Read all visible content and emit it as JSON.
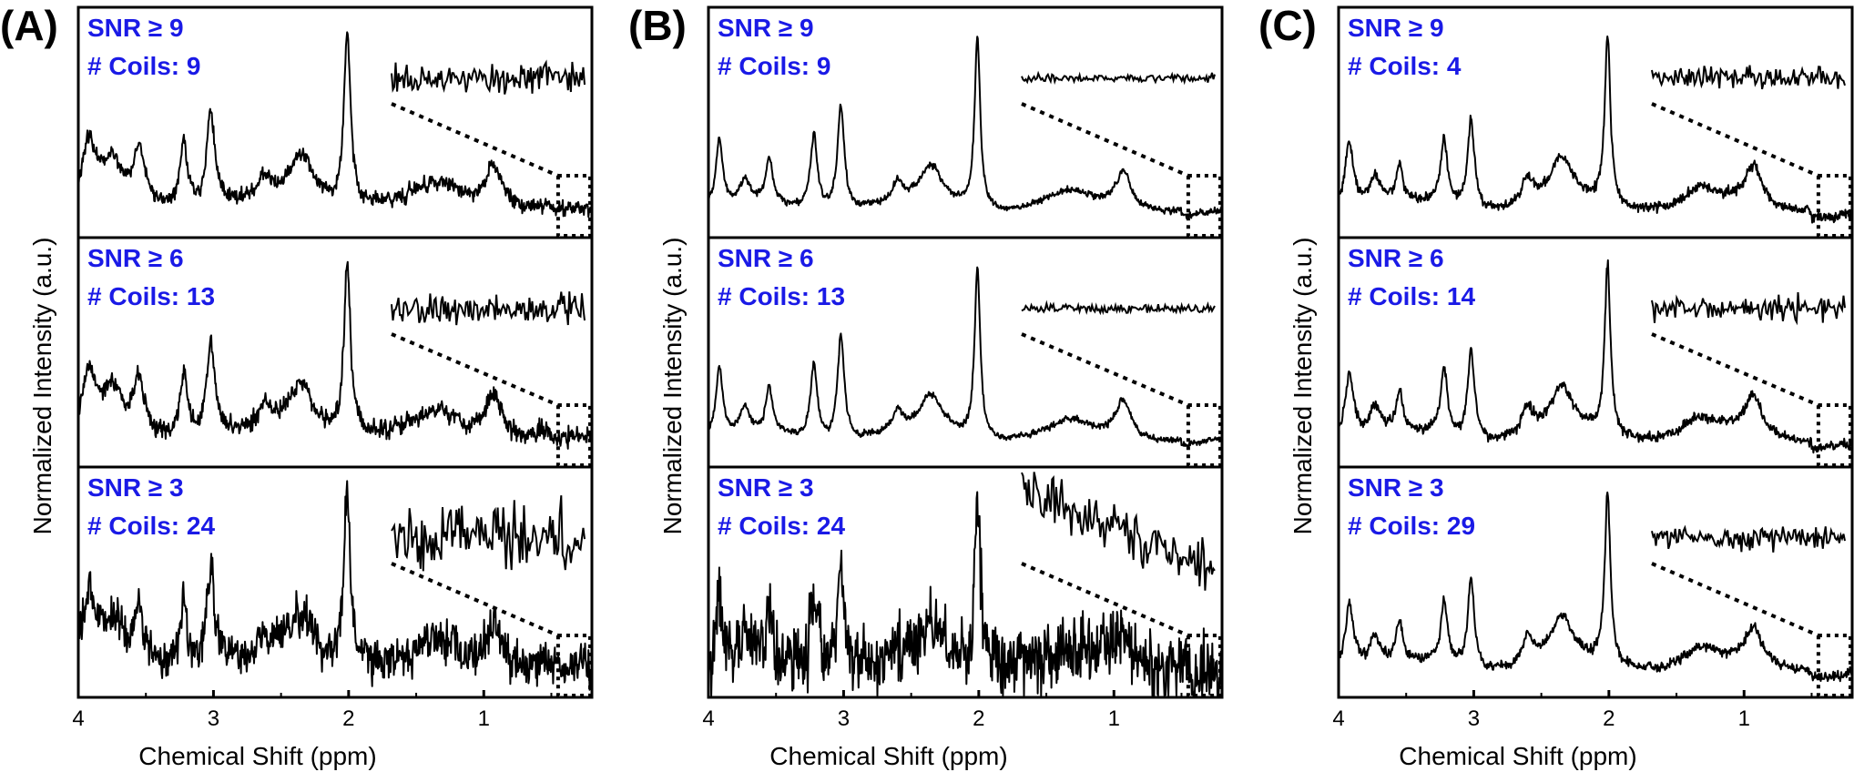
{
  "figure": {
    "annotation_color": "#1a1ae6",
    "line_color": "#000000"
  },
  "chart_data": [
    {
      "type": "line",
      "panel_label": "(A)",
      "xlabel": "Chemical Shift (ppm)",
      "ylabel": "Normalized Intensity (a.u.)",
      "xlim": [
        4.0,
        0.2
      ],
      "xticks": [
        4,
        3,
        2,
        1
      ],
      "tick_labels": [
        "4",
        "3",
        "2",
        "1"
      ],
      "inset_range_ppm": [
        0.45,
        0.2
      ],
      "series": [
        {
          "name": "SNR ≥ 9 / # Coils: 9",
          "snr_label": "SNR ≥ 9",
          "coils_label": "# Coils: 9",
          "noise": 0.045,
          "inset_noise": 0.3
        },
        {
          "name": "SNR ≥ 6 / # Coils: 13",
          "snr_label": "SNR ≥ 6",
          "coils_label": "# Coils: 13",
          "noise": 0.055,
          "inset_noise": 0.32
        },
        {
          "name": "SNR ≥ 3 / # Coils: 24",
          "snr_label": "SNR ≥ 3",
          "coils_label": "# Coils: 24",
          "noise": 0.12,
          "inset_noise": 0.65
        }
      ],
      "peaks_ppm": [
        {
          "ppm": 3.92,
          "height": 0.34,
          "width": 0.06
        },
        {
          "ppm": 3.75,
          "height": 0.25,
          "width": 0.08
        },
        {
          "ppm": 3.55,
          "height": 0.32,
          "width": 0.05
        },
        {
          "ppm": 3.22,
          "height": 0.38,
          "width": 0.035
        },
        {
          "ppm": 3.02,
          "height": 0.56,
          "width": 0.035
        },
        {
          "ppm": 2.62,
          "height": 0.12,
          "width": 0.05
        },
        {
          "ppm": 2.35,
          "height": 0.3,
          "width": 0.12
        },
        {
          "ppm": 2.01,
          "height": 1.0,
          "width": 0.03
        },
        {
          "ppm": 1.33,
          "height": 0.12,
          "width": 0.18
        },
        {
          "ppm": 0.93,
          "height": 0.26,
          "width": 0.08
        }
      ]
    },
    {
      "type": "line",
      "panel_label": "(B)",
      "xlabel": "Chemical Shift (ppm)",
      "ylabel": "Normalized Intensity (a.u.)",
      "xlim": [
        4.0,
        0.2
      ],
      "xticks": [
        4,
        3,
        2,
        1
      ],
      "tick_labels": [
        "4",
        "3",
        "2",
        "1"
      ],
      "inset_range_ppm": [
        0.45,
        0.2
      ],
      "series": [
        {
          "name": "SNR ≥ 9 / # Coils: 9",
          "snr_label": "SNR ≥ 9",
          "coils_label": "# Coils: 9",
          "noise": 0.02,
          "inset_noise": 0.08
        },
        {
          "name": "SNR ≥ 6 / # Coils: 13",
          "snr_label": "SNR ≥ 6",
          "coils_label": "# Coils: 13",
          "noise": 0.02,
          "inset_noise": 0.08
        },
        {
          "name": "SNR ≥ 3 / # Coils: 24",
          "snr_label": "SNR ≥ 3",
          "coils_label": "# Coils: 24",
          "noise": 0.2,
          "inset_noise": 0.45
        }
      ],
      "peaks_ppm": [
        {
          "ppm": 3.92,
          "height": 0.4,
          "width": 0.03
        },
        {
          "ppm": 3.73,
          "height": 0.14,
          "width": 0.04
        },
        {
          "ppm": 3.55,
          "height": 0.26,
          "width": 0.03
        },
        {
          "ppm": 3.22,
          "height": 0.44,
          "width": 0.03
        },
        {
          "ppm": 3.02,
          "height": 0.62,
          "width": 0.03
        },
        {
          "ppm": 2.6,
          "height": 0.12,
          "width": 0.04
        },
        {
          "ppm": 2.35,
          "height": 0.22,
          "width": 0.1
        },
        {
          "ppm": 2.01,
          "height": 1.0,
          "width": 0.025
        },
        {
          "ppm": 1.33,
          "height": 0.07,
          "width": 0.15
        },
        {
          "ppm": 0.93,
          "height": 0.22,
          "width": 0.07
        }
      ]
    },
    {
      "type": "line",
      "panel_label": "(C)",
      "xlabel": "Chemical Shift (ppm)",
      "ylabel": "Normalized Intensity (a.u.)",
      "xlim": [
        4.0,
        0.2
      ],
      "xticks": [
        4,
        3,
        2,
        1
      ],
      "tick_labels": [
        "4",
        "3",
        "2",
        "1"
      ],
      "inset_range_ppm": [
        0.45,
        0.2
      ],
      "series": [
        {
          "name": "SNR ≥ 9 / # Coils: 4",
          "snr_label": "SNR ≥ 9",
          "coils_label": "# Coils: 4",
          "noise": 0.03,
          "inset_noise": 0.22
        },
        {
          "name": "SNR ≥ 6 / # Coils: 14",
          "snr_label": "SNR ≥ 6",
          "coils_label": "# Coils: 14",
          "noise": 0.03,
          "inset_noise": 0.24
        },
        {
          "name": "SNR ≥ 3 / # Coils: 29",
          "snr_label": "SNR ≥ 3",
          "coils_label": "# Coils: 29",
          "noise": 0.03,
          "inset_noise": 0.22
        }
      ],
      "peaks_ppm": [
        {
          "ppm": 3.92,
          "height": 0.38,
          "width": 0.04
        },
        {
          "ppm": 3.73,
          "height": 0.16,
          "width": 0.05
        },
        {
          "ppm": 3.55,
          "height": 0.22,
          "width": 0.03
        },
        {
          "ppm": 3.22,
          "height": 0.38,
          "width": 0.03
        },
        {
          "ppm": 3.02,
          "height": 0.52,
          "width": 0.03
        },
        {
          "ppm": 2.6,
          "height": 0.16,
          "width": 0.05
        },
        {
          "ppm": 2.35,
          "height": 0.26,
          "width": 0.1
        },
        {
          "ppm": 2.01,
          "height": 1.0,
          "width": 0.025
        },
        {
          "ppm": 1.33,
          "height": 0.1,
          "width": 0.15
        },
        {
          "ppm": 0.93,
          "height": 0.22,
          "width": 0.07
        }
      ]
    }
  ]
}
